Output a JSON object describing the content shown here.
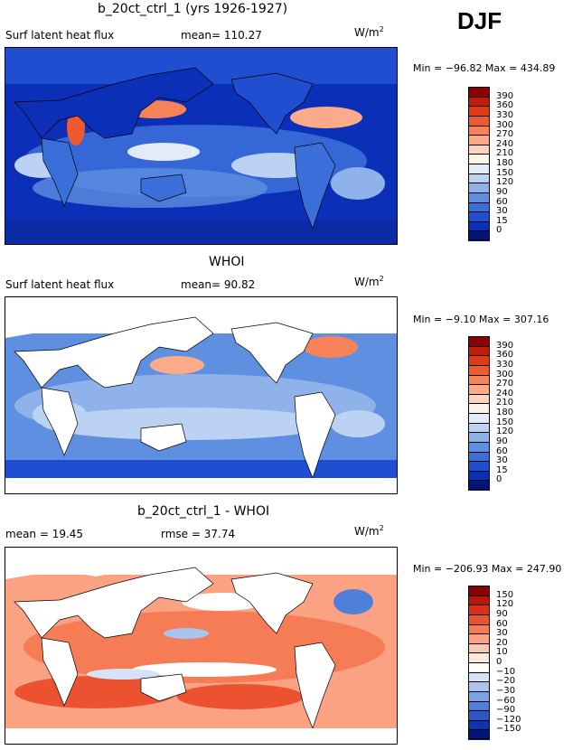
{
  "header": {
    "season": "DJF"
  },
  "panels": [
    {
      "title": "b_20ct_ctrl_1 (yrs 1926-1927)",
      "left_text": "Surf latent heat flux",
      "right_text": "mean= 110.27",
      "unit_base": "W/m",
      "unit_exp": "2",
      "minmax": "Min = −96.82 Max = 434.89",
      "levels": [
        "390",
        "360",
        "330",
        "300",
        "270",
        "240",
        "210",
        "180",
        "150",
        "120",
        "90",
        "60",
        "30",
        "15",
        "0"
      ],
      "colors": [
        "#8b0000",
        "#c01c0a",
        "#dd3b1a",
        "#ee5a2e",
        "#f6835a",
        "#fbab8a",
        "#fcd3bf",
        "#fdf3e6",
        "#e2ebf8",
        "#bcd2f2",
        "#8fb2ea",
        "#5e8fe0",
        "#3a6fd9",
        "#1f4ed0",
        "#0c2fb8",
        "#04157a"
      ],
      "mean_value": 110.27
    },
    {
      "title": "WHOI",
      "left_text": "Surf latent heat flux",
      "right_text": "mean= 90.82",
      "unit_base": "W/m",
      "unit_exp": "2",
      "minmax": "Min = −9.10 Max = 307.16",
      "levels": [
        "390",
        "360",
        "330",
        "300",
        "270",
        "240",
        "210",
        "180",
        "150",
        "120",
        "90",
        "60",
        "30",
        "15",
        "0"
      ],
      "colors": [
        "#8b0000",
        "#c01c0a",
        "#dd3b1a",
        "#ee5a2e",
        "#f6835a",
        "#fbab8a",
        "#fcd3bf",
        "#fdf3e6",
        "#e2ebf8",
        "#bcd2f2",
        "#8fb2ea",
        "#5e8fe0",
        "#3a6fd9",
        "#1f4ed0",
        "#0c2fb8",
        "#04157a"
      ],
      "mean_value": 90.82
    },
    {
      "title": "b_20ct_ctrl_1 - WHOI",
      "left_text": "mean = 19.45",
      "right_text": "rmse = 37.74",
      "unit_base": "W/m",
      "unit_exp": "2",
      "minmax": "Min = −206.93 Max = 247.90",
      "levels": [
        "150",
        "120",
        "90",
        "60",
        "30",
        "20",
        "10",
        "0",
        "−10",
        "−20",
        "−30",
        "−60",
        "−90",
        "−120",
        "−150"
      ],
      "colors": [
        "#8b0000",
        "#b8160b",
        "#d83019",
        "#ec5230",
        "#f67c55",
        "#fba283",
        "#fdc8b0",
        "#fee9dc",
        "#ffffff",
        "#d6e3f6",
        "#a9c4ee",
        "#7ba3e4",
        "#4f7fd8",
        "#2a57c8",
        "#1032ad",
        "#04157a"
      ],
      "mean_value": 19.45,
      "rmse_value": 37.74
    }
  ]
}
